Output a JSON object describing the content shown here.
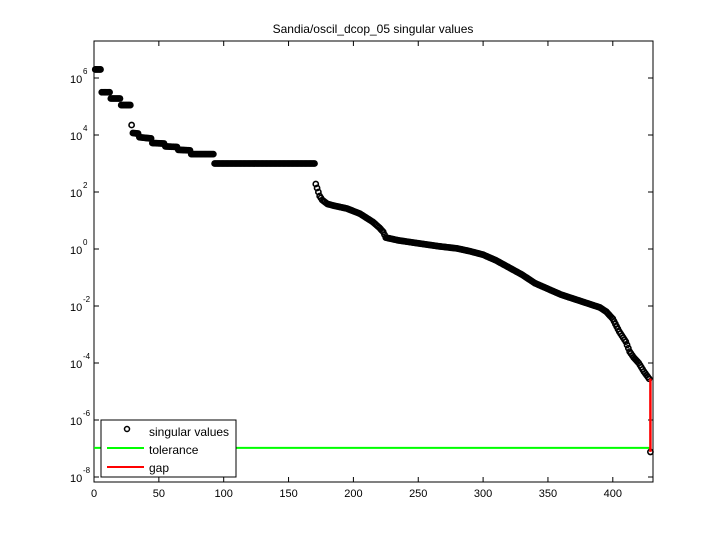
{
  "chart_data": {
    "type": "scatter",
    "title": "Sandia/oscil_dcop_05 singular values",
    "xlabel": "",
    "ylabel": "",
    "yscale": "log",
    "xlim": [
      0,
      430
    ],
    "ylim_log10": [
      -8.2,
      7.3
    ],
    "grid": false,
    "legend_position": "lower left",
    "x_ticks": [
      0,
      50,
      100,
      150,
      200,
      250,
      300,
      350,
      400
    ],
    "y_ticks_exponents": [
      6,
      4,
      2,
      0,
      -2,
      -4,
      -6,
      -8
    ],
    "legend": [
      {
        "label": "singular values",
        "marker": "o",
        "color": "#000000"
      },
      {
        "label": "tolerance",
        "line": true,
        "color": "#00ff00"
      },
      {
        "label": "gap",
        "line": true,
        "color": "#ff0000"
      }
    ],
    "series": [
      {
        "name": "singular values",
        "color": "#000000",
        "points_log10": [
          [
            1,
            6.3
          ],
          [
            5,
            6.3
          ],
          [
            6,
            5.5
          ],
          [
            12,
            5.5
          ],
          [
            13,
            5.28
          ],
          [
            20,
            5.28
          ],
          [
            21,
            5.05
          ],
          [
            28,
            5.05
          ],
          [
            29,
            4.35
          ],
          [
            30,
            4.07
          ],
          [
            34,
            4.05
          ],
          [
            35,
            3.92
          ],
          [
            44,
            3.88
          ],
          [
            45,
            3.72
          ],
          [
            54,
            3.7
          ],
          [
            55,
            3.6
          ],
          [
            64,
            3.58
          ],
          [
            65,
            3.48
          ],
          [
            74,
            3.46
          ],
          [
            75,
            3.33
          ],
          [
            92,
            3.33
          ],
          [
            93,
            3.0
          ],
          [
            170,
            3.0
          ],
          [
            171,
            2.28
          ],
          [
            172,
            2.14
          ],
          [
            174,
            1.86
          ],
          [
            176,
            1.72
          ],
          [
            180,
            1.58
          ],
          [
            185,
            1.52
          ],
          [
            195,
            1.42
          ],
          [
            205,
            1.24
          ],
          [
            215,
            0.95
          ],
          [
            220,
            0.75
          ],
          [
            223,
            0.6
          ],
          [
            225,
            0.4
          ],
          [
            235,
            0.3
          ],
          [
            250,
            0.2
          ],
          [
            265,
            0.1
          ],
          [
            280,
            0.02
          ],
          [
            290,
            -0.08
          ],
          [
            300,
            -0.2
          ],
          [
            310,
            -0.4
          ],
          [
            320,
            -0.65
          ],
          [
            330,
            -0.9
          ],
          [
            340,
            -1.2
          ],
          [
            350,
            -1.4
          ],
          [
            360,
            -1.6
          ],
          [
            370,
            -1.75
          ],
          [
            380,
            -1.9
          ],
          [
            390,
            -2.05
          ],
          [
            395,
            -2.2
          ],
          [
            400,
            -2.45
          ],
          [
            405,
            -2.9
          ],
          [
            410,
            -3.25
          ],
          [
            413,
            -3.6
          ],
          [
            416,
            -3.8
          ],
          [
            420,
            -4.0
          ],
          [
            424,
            -4.3
          ],
          [
            428,
            -4.55
          ],
          [
            429,
            -7.12
          ]
        ]
      },
      {
        "name": "tolerance",
        "color": "#00ff00",
        "y_log10": -6.98,
        "x_range": [
          0,
          429
        ]
      },
      {
        "name": "gap",
        "color": "#ff0000",
        "x": 429,
        "y_log10_range": [
          -4.55,
          -7.12
        ]
      }
    ]
  }
}
